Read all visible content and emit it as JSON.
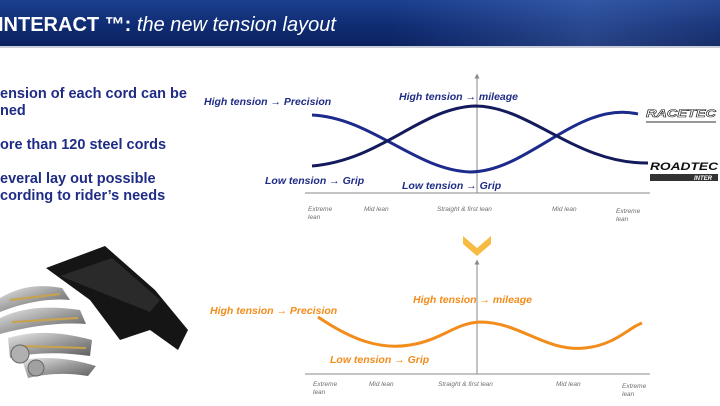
{
  "header": {
    "title_bold": "INTERACT ™:",
    "title_italic": " the new tension layout"
  },
  "bullets": [
    "ension of each cord can be\nned",
    "ore than 120 steel cords",
    "everal lay out possible\ncording to rider’s needs"
  ],
  "top_chart": {
    "labels": {
      "high_precision": "High tension → Precision",
      "high_mileage": "High tension → mileage",
      "low_grip_left": "Low tension → Grip",
      "low_grip_center": "Low tension → Grip"
    },
    "brands": [
      "RACETEC",
      "ROADTEC"
    ],
    "ticks": [
      "Extreme\nlean",
      "Mid lean",
      "Straight & first lean",
      "Mid lean",
      "Extreme\nlean"
    ]
  },
  "bottom_chart": {
    "labels": {
      "high_precision": "High tension → Precision",
      "high_mileage": "High tension → mileage",
      "low_grip": "Low tension → Grip"
    },
    "ticks": [
      "Extreme\nlean",
      "Mid lean",
      "Straight & first lean",
      "Mid lean",
      "Extreme\nlean"
    ]
  },
  "colors": {
    "header_bg": "#0f2c73",
    "navy_text": "#1f2c86",
    "curve_blue": "#1c2a8c",
    "curve_navy": "#141b5c",
    "orange": "#f28c1b",
    "chevron": "#f5b52e"
  }
}
